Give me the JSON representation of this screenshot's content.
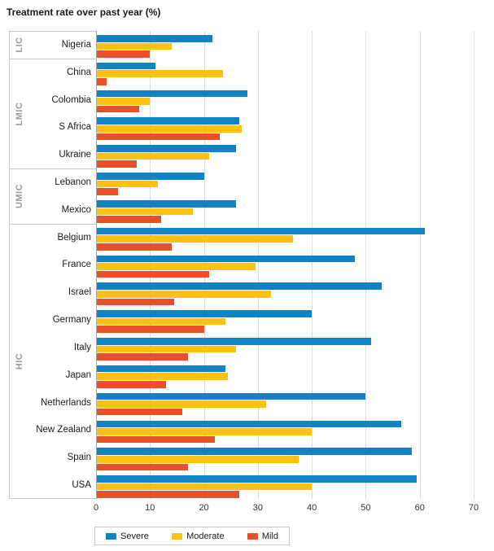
{
  "title": "Treatment rate over past year (%)",
  "chart_data": {
    "type": "bar",
    "orientation": "horizontal",
    "title": "Treatment rate over past year (%)",
    "xlabel": "",
    "ylabel": "",
    "xlim": [
      0,
      70
    ],
    "xticks": [
      0,
      10,
      20,
      30,
      40,
      50,
      60,
      70
    ],
    "grid": true,
    "legend_position": "bottom",
    "series": [
      {
        "name": "Severe",
        "color": "#1182c4"
      },
      {
        "name": "Moderate",
        "color": "#fdc113"
      },
      {
        "name": "Mild",
        "color": "#e8502a"
      }
    ],
    "value_order_note": "values arrays are [Severe, Moderate, Mild] in percent",
    "groups": [
      {
        "label": "LIC",
        "rows": [
          {
            "country": "Nigeria",
            "values": [
              21.5,
              14,
              10
            ]
          }
        ]
      },
      {
        "label": "LMIC",
        "rows": [
          {
            "country": "China",
            "values": [
              11,
              23.5,
              2
            ]
          },
          {
            "country": "Colombia",
            "values": [
              28,
              10,
              8
            ]
          },
          {
            "country": "S Africa",
            "values": [
              26.5,
              27,
              23
            ]
          },
          {
            "country": "Ukraine",
            "values": [
              26,
              21,
              7.5
            ]
          }
        ]
      },
      {
        "label": "UMIC",
        "rows": [
          {
            "country": "Lebanon",
            "values": [
              20,
              11.5,
              4
            ]
          },
          {
            "country": "Mexico",
            "values": [
              26,
              18,
              12
            ]
          }
        ]
      },
      {
        "label": "HIC",
        "rows": [
          {
            "country": "Belgium",
            "values": [
              61,
              36.5,
              14
            ]
          },
          {
            "country": "France",
            "values": [
              48,
              29.5,
              21
            ]
          },
          {
            "country": "Israel",
            "values": [
              53,
              32.5,
              14.5
            ]
          },
          {
            "country": "Germany",
            "values": [
              40,
              24,
              20
            ]
          },
          {
            "country": "Italy",
            "values": [
              51,
              26,
              17
            ]
          },
          {
            "country": "Japan",
            "values": [
              24,
              24.5,
              13
            ]
          },
          {
            "country": "Netherlands",
            "values": [
              50,
              31.5,
              16
            ]
          },
          {
            "country": "New Zealand",
            "values": [
              56.5,
              40,
              22
            ]
          },
          {
            "country": "Spain",
            "values": [
              58.5,
              37.5,
              17
            ]
          },
          {
            "country": "USA",
            "values": [
              59.5,
              40,
              26.5
            ]
          }
        ]
      }
    ]
  },
  "colors": {
    "gridline": "#dcdcdc",
    "axis": "#ababab",
    "box_border": "#c9c9c9",
    "group_label_text": "#9b9b9b",
    "text": "#1a1a1a"
  }
}
